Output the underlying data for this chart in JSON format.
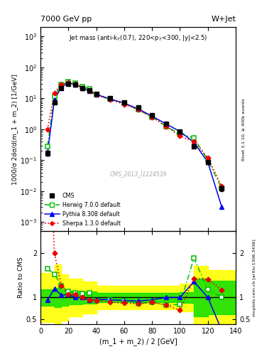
{
  "title_top": "7000 GeV pp",
  "title_right": "W+Jet",
  "xlabel": "(m_1 + m_2) / 2 [GeV]",
  "ylabel_main": "1000/σ 2dσ/d(m_1 + m_2) [1/GeV]",
  "ylabel_ratio": "Ratio to CMS",
  "watermark": "CMS_2013_I1224539",
  "right_label_top": "Rivet 3.1.10, ≥ 400k events",
  "right_label_bot": "mcplots.cern.ch [arXiv:1306.3436]",
  "xlim": [
    0,
    140
  ],
  "ylim_main": [
    0.0005,
    2000.0
  ],
  "ylim_ratio": [
    0.4,
    2.5
  ],
  "cms_x": [
    5,
    10,
    15,
    20,
    25,
    30,
    35,
    40,
    50,
    60,
    70,
    80,
    90,
    100,
    110,
    120,
    130
  ],
  "cms_y": [
    0.17,
    7.5,
    22.0,
    30.0,
    28.0,
    22.0,
    18.0,
    14.0,
    10.0,
    7.5,
    5.0,
    2.8,
    1.5,
    0.85,
    0.28,
    0.085,
    0.012
  ],
  "cms_yerr": [
    0.03,
    0.5,
    1.0,
    1.2,
    1.0,
    1.0,
    0.8,
    0.7,
    0.5,
    0.4,
    0.25,
    0.15,
    0.08,
    0.04,
    0.015,
    0.006,
    0.002
  ],
  "herwig_x": [
    5,
    10,
    15,
    20,
    25,
    30,
    35,
    40,
    50,
    60,
    70,
    80,
    90,
    100,
    110,
    120,
    130
  ],
  "herwig_y": [
    0.28,
    11.5,
    28.0,
    34.0,
    31.0,
    24.0,
    20.0,
    13.0,
    9.5,
    7.0,
    4.3,
    2.5,
    1.25,
    0.71,
    0.53,
    0.1,
    0.012
  ],
  "pythia_x": [
    5,
    10,
    15,
    20,
    25,
    30,
    35,
    40,
    50,
    60,
    70,
    80,
    90,
    100,
    110,
    120,
    130
  ],
  "pythia_y": [
    0.16,
    9.0,
    23.0,
    32.0,
    28.0,
    22.0,
    17.0,
    13.5,
    9.5,
    7.0,
    4.6,
    2.65,
    1.5,
    0.85,
    0.38,
    0.085,
    0.003
  ],
  "sherpa_x": [
    5,
    10,
    15,
    20,
    25,
    30,
    35,
    40,
    50,
    60,
    70,
    80,
    90,
    100,
    110,
    120,
    130
  ],
  "sherpa_y": [
    1.0,
    15.0,
    28.0,
    32.0,
    30.0,
    22.0,
    17.0,
    13.0,
    9.0,
    6.5,
    4.3,
    2.5,
    1.25,
    0.6,
    0.4,
    0.12,
    0.014
  ],
  "herwig_ratio": [
    1.65,
    1.53,
    1.27,
    1.13,
    1.1,
    1.09,
    1.11,
    0.93,
    0.95,
    0.93,
    0.86,
    0.89,
    0.83,
    0.84,
    1.89,
    1.18,
    1.0
  ],
  "pythia_ratio": [
    0.94,
    1.2,
    1.05,
    1.07,
    1.0,
    1.0,
    0.94,
    0.96,
    0.95,
    0.93,
    0.92,
    0.95,
    1.0,
    1.0,
    1.36,
    1.0,
    0.25
  ],
  "sherpa_ratio": [
    5.9,
    2.0,
    1.27,
    1.07,
    1.07,
    1.0,
    0.94,
    0.93,
    0.9,
    0.87,
    0.86,
    0.89,
    0.83,
    0.71,
    1.43,
    1.41,
    1.17
  ],
  "band_edges": [
    0,
    5,
    10,
    15,
    20,
    30,
    40,
    50,
    60,
    70,
    80,
    90,
    100,
    110,
    120,
    130,
    140
  ],
  "band_green": [
    0.18,
    0.18,
    0.22,
    0.18,
    0.15,
    0.14,
    0.11,
    0.1,
    0.1,
    0.1,
    0.1,
    0.11,
    0.12,
    0.42,
    0.38,
    0.38,
    0.38
  ],
  "band_yellow": [
    0.55,
    0.55,
    0.75,
    0.52,
    0.42,
    0.36,
    0.26,
    0.26,
    0.26,
    0.26,
    0.26,
    0.27,
    0.32,
    0.72,
    0.62,
    0.62,
    0.62
  ],
  "color_cms": "#000000",
  "color_herwig": "#00bb00",
  "color_pythia": "#0000ee",
  "color_sherpa": "#ee0000",
  "color_band_green": "#00dd00",
  "color_band_yellow": "#ffff00"
}
